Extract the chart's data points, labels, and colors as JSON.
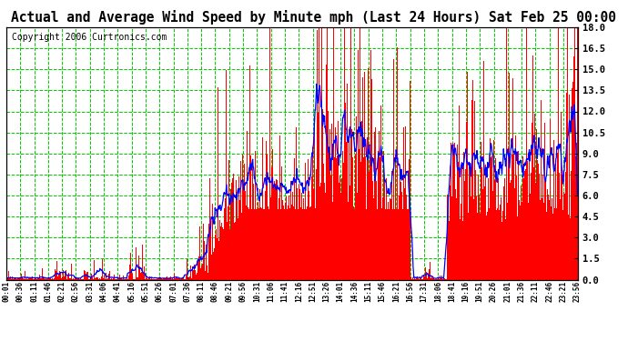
{
  "title": "Actual and Average Wind Speed by Minute mph (Last 24 Hours) Sat Feb 25 00:00",
  "copyright": "Copyright 2006 Curtronics.com",
  "ylim": [
    0,
    18.0
  ],
  "yticks": [
    0.0,
    1.5,
    3.0,
    4.5,
    6.0,
    7.5,
    9.0,
    10.5,
    12.0,
    13.5,
    15.0,
    16.5,
    18.0
  ],
  "background_color": "#ffffff",
  "bar_color": "#ff0000",
  "line_color": "#0000ff",
  "grid_color": "#00cc00",
  "title_fontsize": 10.5,
  "copyright_fontsize": 7,
  "n_minutes": 1440,
  "xtick_labels": [
    "00:01",
    "00:36",
    "01:11",
    "01:46",
    "02:21",
    "02:56",
    "03:31",
    "04:06",
    "04:41",
    "05:16",
    "05:51",
    "06:26",
    "07:01",
    "07:36",
    "08:11",
    "08:46",
    "09:21",
    "09:56",
    "10:31",
    "11:06",
    "11:41",
    "12:16",
    "12:51",
    "13:26",
    "14:01",
    "14:36",
    "15:11",
    "15:46",
    "16:21",
    "16:56",
    "17:31",
    "18:06",
    "18:41",
    "19:16",
    "19:51",
    "20:26",
    "21:01",
    "21:36",
    "22:11",
    "22:46",
    "23:21",
    "23:56"
  ]
}
